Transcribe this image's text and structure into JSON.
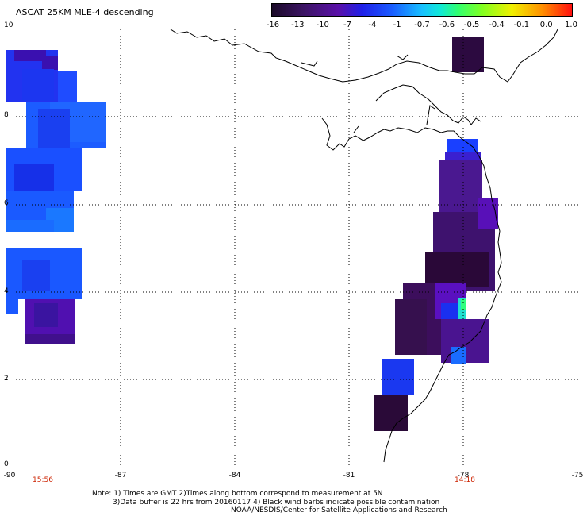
{
  "title": "ASCAT 25KM MLE-4 descending",
  "colorbar": {
    "labels": [
      "-16",
      "-13",
      "-10",
      "-7",
      "-4",
      "-1",
      "-0.7",
      "-0.6",
      "-0.5",
      "-0.4",
      "-0.1",
      "0.0",
      "1.0"
    ],
    "colors": [
      "#1a0a28",
      "#3a1460",
      "#5a10a8",
      "#3020e8",
      "#1a5cff",
      "#18a8ff",
      "#10e8e8",
      "#30ff80",
      "#80ff20",
      "#e8f000",
      "#ffb000",
      "#ff6000",
      "#ff1010"
    ]
  },
  "axes": {
    "x_ticks": [
      "-90",
      "-87",
      "-84",
      "-81",
      "-78",
      "-75"
    ],
    "y_ticks": [
      "10",
      "8",
      "6",
      "4",
      "2",
      "0"
    ]
  },
  "times": {
    "left": "15:56",
    "right": "14:18"
  },
  "notes": {
    "line1": "Note: 1) Times are GMT 2)Times along bottom correspond to measurement at 5N",
    "line2": "3)Data buffer is 22 hrs from 20160117 4) Black wind barbs indicate possible contamination",
    "line3": "NOAA/NESDIS/Center for Satellite Applications and Research"
  }
}
